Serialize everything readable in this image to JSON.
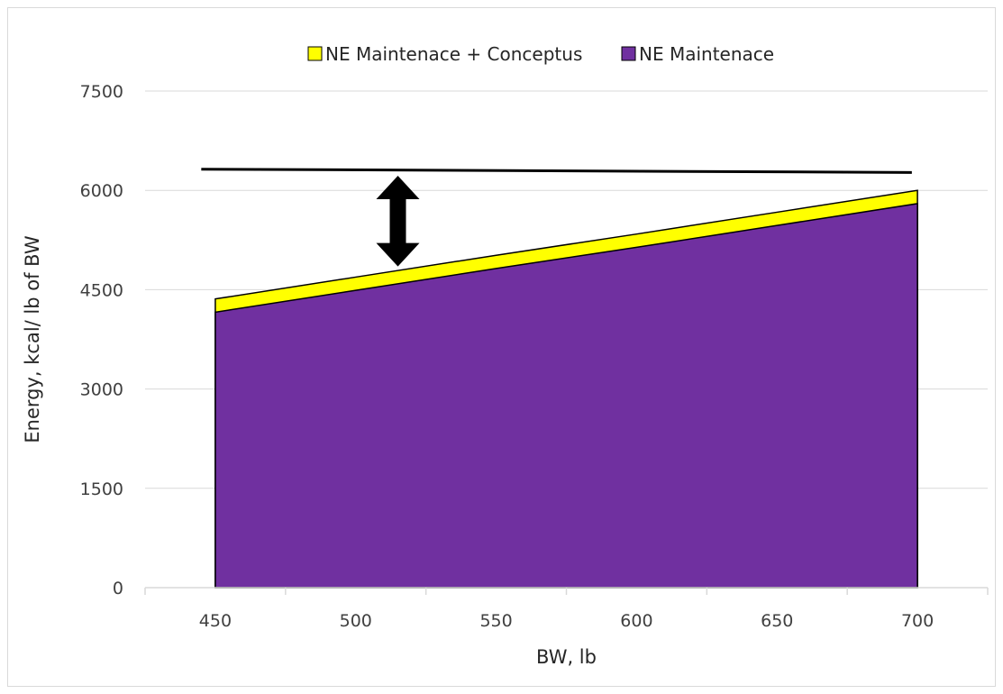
{
  "chart_data": {
    "type": "area",
    "x": [
      450,
      500,
      550,
      600,
      650,
      700
    ],
    "series": [
      {
        "name": "NE Maintenace + Conceptus",
        "color": "#ffff00",
        "values": [
          4360,
          4690,
          5020,
          5340,
          5670,
          6000
        ]
      },
      {
        "name": "NE Maintenace",
        "color": "#7030a0",
        "values": [
          4160,
          4490,
          4820,
          5140,
          5470,
          5800
        ]
      }
    ],
    "reference_line": {
      "x": [
        445,
        698
      ],
      "values": [
        6320,
        6270
      ],
      "color": "#000000"
    },
    "annotation": {
      "type": "double-arrow",
      "x": 515,
      "from": 4850,
      "to": 6220
    },
    "xlabel": "BW, lb",
    "ylabel": "Energy, kcal/ lb of BW",
    "xticks": [
      "450",
      "500",
      "550",
      "600",
      "650",
      "700"
    ],
    "yticks": [
      "0",
      "1500",
      "3000",
      "4500",
      "6000",
      "7500"
    ],
    "xlim": [
      425,
      725
    ],
    "ylim": [
      0,
      7500
    ],
    "grid": "horizontal",
    "legend_position": "top"
  }
}
